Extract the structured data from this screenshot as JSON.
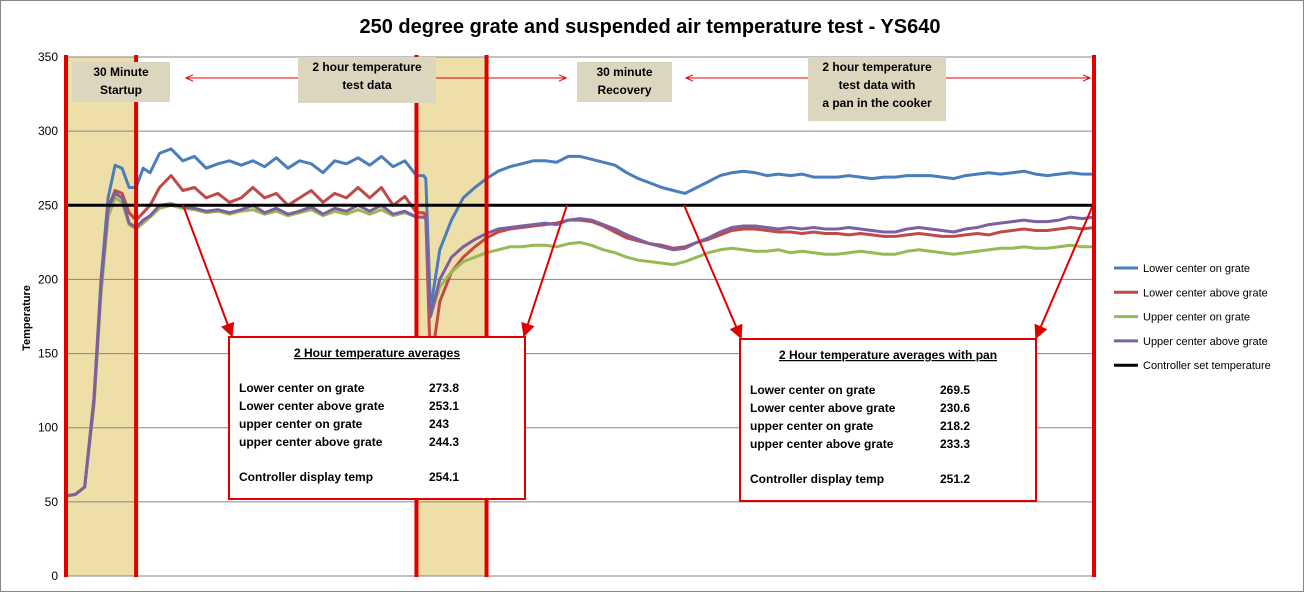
{
  "chart_data": {
    "type": "line",
    "title": "250 degree grate and suspended air temperature test - YS640",
    "ylabel": "Temperature",
    "xlabel": "",
    "ylim": [
      0,
      350
    ],
    "yticks": [
      0,
      50,
      100,
      150,
      200,
      250,
      300,
      350
    ],
    "grid": true,
    "legend_position": "right",
    "phases": [
      {
        "label": "30 Minute\nStartup",
        "shaded": true
      },
      {
        "label": "2 hour temperature\ntest data",
        "shaded": false
      },
      {
        "label": "30 minute\nRecovery",
        "shaded": true
      },
      {
        "label": "2 hour temperature\ntest data with\na pan in the cooker",
        "shaded": false
      }
    ],
    "series": [
      {
        "name": "Lower center on grate",
        "color": "#4a7ebb",
        "x": [
          0,
          4,
          8,
          12,
          15,
          18,
          21,
          24,
          27,
          30,
          33,
          36,
          40,
          45,
          50,
          55,
          60,
          65,
          70,
          75,
          80,
          85,
          90,
          95,
          100,
          105,
          110,
          115,
          120,
          125,
          130,
          135,
          140,
          145,
          150,
          153,
          154,
          156,
          160,
          165,
          170,
          175,
          180,
          185,
          190,
          195,
          200,
          205,
          210,
          215,
          220,
          225,
          230,
          235,
          240,
          245,
          250,
          255,
          260,
          265,
          270,
          275,
          280,
          285,
          290,
          295,
          300,
          305,
          310,
          315,
          320,
          325,
          330,
          335,
          340,
          345,
          350,
          355,
          360,
          365,
          370,
          375,
          380,
          385,
          390,
          395,
          400,
          405,
          410,
          415,
          420,
          425,
          430,
          435,
          440
        ],
        "y": [
          54,
          55,
          60,
          120,
          200,
          255,
          277,
          275,
          262,
          262,
          275,
          272,
          285,
          288,
          280,
          283,
          275,
          278,
          280,
          277,
          280,
          276,
          282,
          275,
          280,
          278,
          272,
          280,
          278,
          282,
          277,
          283,
          276,
          280,
          270,
          270,
          268,
          180,
          220,
          240,
          255,
          262,
          268,
          273,
          276,
          278,
          280,
          280,
          279,
          283,
          283,
          281,
          279,
          277,
          272,
          268,
          265,
          262,
          260,
          258,
          262,
          266,
          270,
          272,
          273,
          272,
          270,
          271,
          270,
          271,
          269,
          269,
          269,
          270,
          269,
          268,
          269,
          269,
          270,
          270,
          270,
          269,
          268,
          270,
          271,
          272,
          271,
          272,
          273,
          271,
          270,
          271,
          272,
          271,
          271
        ]
      },
      {
        "name": "Lower center above grate",
        "color": "#be4b48",
        "x": [
          0,
          4,
          8,
          12,
          15,
          18,
          21,
          24,
          27,
          30,
          33,
          36,
          40,
          45,
          50,
          55,
          60,
          65,
          70,
          75,
          80,
          85,
          90,
          95,
          100,
          105,
          110,
          115,
          120,
          125,
          130,
          135,
          140,
          145,
          150,
          153,
          154,
          156,
          160,
          165,
          170,
          175,
          180,
          185,
          190,
          195,
          200,
          205,
          210,
          215,
          220,
          225,
          230,
          235,
          240,
          245,
          250,
          255,
          260,
          265,
          270,
          275,
          280,
          285,
          290,
          295,
          300,
          305,
          310,
          315,
          320,
          325,
          330,
          335,
          340,
          345,
          350,
          355,
          360,
          365,
          370,
          375,
          380,
          385,
          390,
          395,
          400,
          405,
          410,
          415,
          420,
          425,
          430,
          435,
          440
        ],
        "y": [
          54,
          55,
          60,
          120,
          195,
          248,
          260,
          258,
          245,
          240,
          245,
          250,
          262,
          270,
          260,
          262,
          255,
          258,
          252,
          255,
          262,
          255,
          258,
          250,
          255,
          260,
          252,
          258,
          255,
          262,
          255,
          262,
          250,
          256,
          245,
          245,
          243,
          140,
          185,
          205,
          215,
          222,
          228,
          232,
          234,
          235,
          236,
          237,
          238,
          240,
          240,
          239,
          236,
          232,
          228,
          226,
          224,
          223,
          221,
          222,
          225,
          227,
          230,
          233,
          234,
          234,
          233,
          232,
          232,
          231,
          232,
          231,
          231,
          230,
          231,
          230,
          229,
          229,
          230,
          231,
          230,
          229,
          229,
          230,
          231,
          230,
          232,
          233,
          234,
          233,
          233,
          234,
          235,
          234,
          235
        ]
      },
      {
        "name": "Upper center on grate",
        "color": "#98b954",
        "x": [
          0,
          4,
          8,
          12,
          15,
          18,
          21,
          24,
          27,
          30,
          33,
          36,
          40,
          45,
          50,
          55,
          60,
          65,
          70,
          75,
          80,
          85,
          90,
          95,
          100,
          105,
          110,
          115,
          120,
          125,
          130,
          135,
          140,
          145,
          150,
          153,
          154,
          156,
          160,
          165,
          170,
          175,
          180,
          185,
          190,
          195,
          200,
          205,
          210,
          215,
          220,
          225,
          230,
          235,
          240,
          245,
          250,
          255,
          260,
          265,
          270,
          275,
          280,
          285,
          290,
          295,
          300,
          305,
          310,
          315,
          320,
          325,
          330,
          335,
          340,
          345,
          350,
          355,
          360,
          365,
          370,
          375,
          380,
          385,
          390,
          395,
          400,
          405,
          410,
          415,
          420,
          425,
          430,
          435,
          440
        ],
        "y": [
          54,
          55,
          60,
          115,
          190,
          242,
          255,
          252,
          237,
          234,
          238,
          242,
          248,
          250,
          248,
          247,
          245,
          246,
          244,
          246,
          247,
          244,
          246,
          243,
          245,
          247,
          243,
          246,
          244,
          247,
          244,
          247,
          243,
          245,
          242,
          242,
          241,
          175,
          195,
          205,
          212,
          215,
          218,
          220,
          222,
          222,
          223,
          223,
          222,
          224,
          225,
          223,
          220,
          218,
          215,
          213,
          212,
          211,
          210,
          212,
          215,
          218,
          220,
          221,
          220,
          219,
          219,
          220,
          218,
          219,
          218,
          217,
          217,
          218,
          219,
          218,
          217,
          217,
          219,
          220,
          219,
          218,
          217,
          218,
          219,
          220,
          221,
          221,
          222,
          221,
          221,
          222,
          223,
          222,
          222
        ]
      },
      {
        "name": "Upper center above grate",
        "color": "#7d60a0",
        "x": [
          0,
          4,
          8,
          12,
          15,
          18,
          21,
          24,
          27,
          30,
          33,
          36,
          40,
          45,
          50,
          55,
          60,
          65,
          70,
          75,
          80,
          85,
          90,
          95,
          100,
          105,
          110,
          115,
          120,
          125,
          130,
          135,
          140,
          145,
          150,
          153,
          154,
          156,
          160,
          165,
          170,
          175,
          180,
          185,
          190,
          195,
          200,
          205,
          210,
          215,
          220,
          225,
          230,
          235,
          240,
          245,
          250,
          255,
          260,
          265,
          270,
          275,
          280,
          285,
          290,
          295,
          300,
          305,
          310,
          315,
          320,
          325,
          330,
          335,
          340,
          345,
          350,
          355,
          360,
          365,
          370,
          375,
          380,
          385,
          390,
          395,
          400,
          405,
          410,
          415,
          420,
          425,
          430,
          435,
          440
        ],
        "y": [
          54,
          55,
          60,
          118,
          195,
          248,
          258,
          255,
          238,
          235,
          240,
          243,
          250,
          251,
          249,
          248,
          246,
          247,
          245,
          247,
          250,
          245,
          248,
          244,
          246,
          249,
          244,
          248,
          246,
          250,
          246,
          250,
          244,
          246,
          242,
          242,
          241,
          175,
          200,
          215,
          222,
          227,
          231,
          234,
          235,
          236,
          237,
          238,
          237,
          240,
          241,
          240,
          237,
          234,
          230,
          227,
          224,
          222,
          220,
          221,
          225,
          228,
          232,
          235,
          236,
          236,
          235,
          234,
          235,
          234,
          235,
          234,
          234,
          235,
          234,
          233,
          232,
          232,
          234,
          235,
          234,
          233,
          232,
          234,
          235,
          237,
          238,
          239,
          240,
          239,
          239,
          240,
          242,
          241,
          242
        ]
      },
      {
        "name": "Controller set temperature",
        "color": "#000000",
        "x": [
          0,
          440
        ],
        "y": [
          250,
          250
        ]
      }
    ],
    "averages_boxes": [
      {
        "heading": "2 Hour temperature averages",
        "rows": [
          {
            "label": "Lower center on grate",
            "value": "273.8"
          },
          {
            "label": "Lower center above grate",
            "value": "253.1"
          },
          {
            "label": "upper center on grate",
            "value": "243"
          },
          {
            "label": "upper center above grate",
            "value": "244.3"
          }
        ],
        "footer": {
          "label": "Controller display temp",
          "value": "254.1"
        }
      },
      {
        "heading": "2 Hour temperature averages with pan",
        "rows": [
          {
            "label": "Lower center on grate",
            "value": "269.5"
          },
          {
            "label": "Lower center above grate",
            "value": "230.6"
          },
          {
            "label": "upper center on grate",
            "value": "218.2"
          },
          {
            "label": "upper center above grate",
            "value": "233.3"
          }
        ],
        "footer": {
          "label": "Controller display temp",
          "value": "251.2"
        }
      }
    ]
  }
}
